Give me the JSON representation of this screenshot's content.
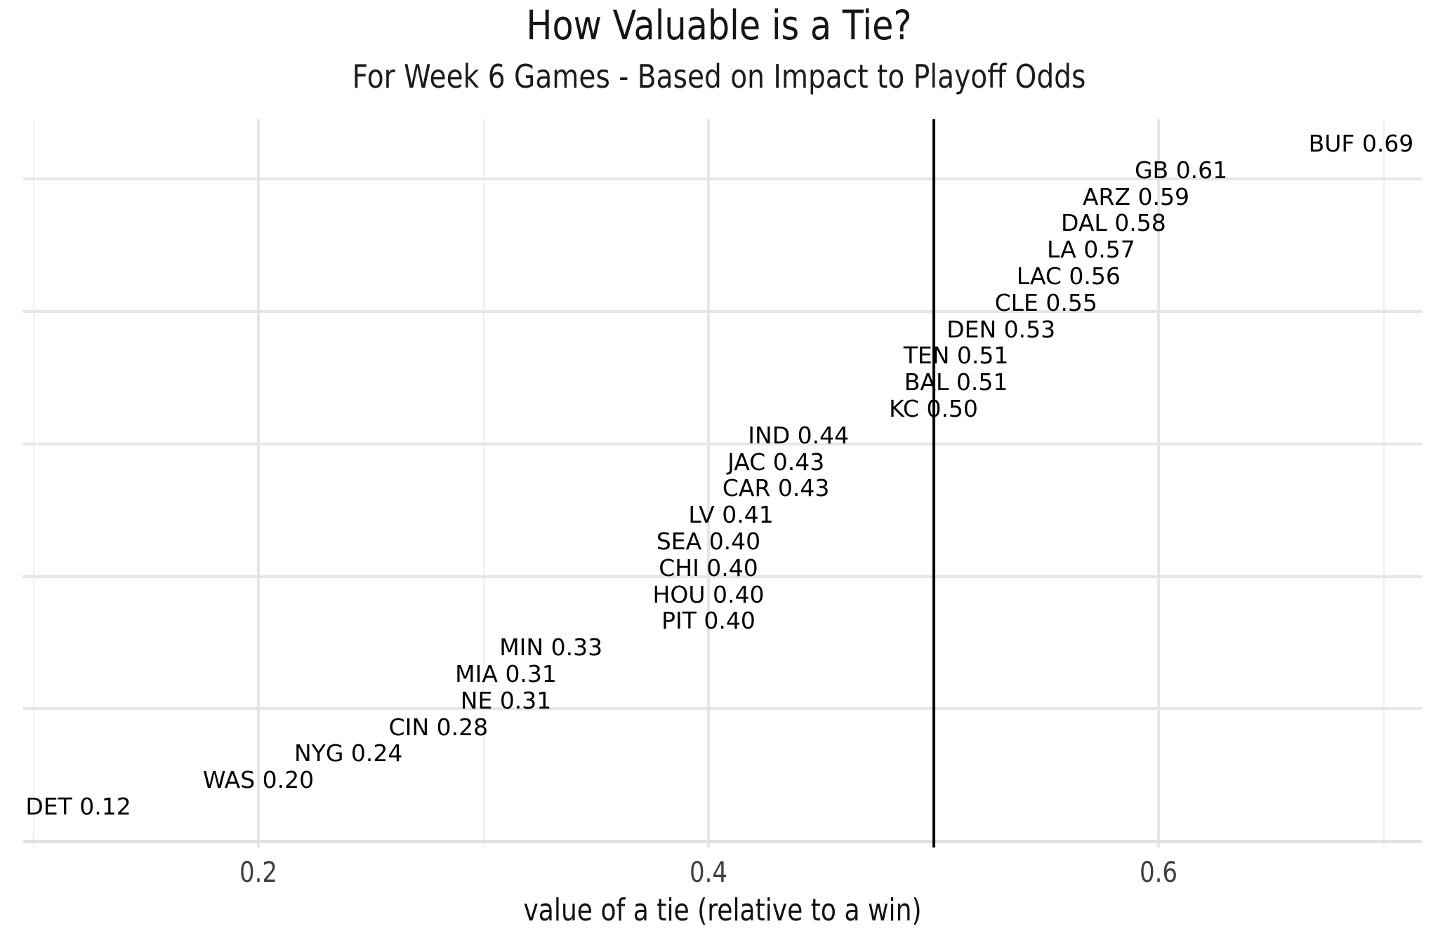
{
  "chart_data": {
    "type": "scatter",
    "title": "How Valuable is a Tie?",
    "subtitle": "For Week 6 Games - Based on Impact to Playoff Odds",
    "xlabel": "value of a tie (relative to a win)",
    "x_axis": {
      "tick_values": [
        0.2,
        0.4,
        0.6
      ],
      "tick_labels": [
        "0.2",
        "0.4",
        "0.6"
      ],
      "minor_gridline_values": [
        0.1,
        0.3,
        0.5,
        0.7
      ],
      "range": [
        0.095,
        0.717
      ]
    },
    "y_axis": {
      "label": "",
      "tick_labels": [],
      "gridlines": true,
      "note": "teams ordered by value, top = highest"
    },
    "reference_line_x": 0.5,
    "grid": true,
    "legend": false,
    "marker_style": "text-label",
    "colors": {
      "label": "#000000",
      "reference_line": "#000000",
      "grid_major": "#e6e6e6",
      "grid_minor": "#efefef",
      "tick_text": "#404040",
      "title_text": "#151515"
    },
    "points": [
      {
        "team": "BUF",
        "value": 0.69,
        "label": "BUF 0.69"
      },
      {
        "team": "GB",
        "value": 0.61,
        "label": "GB 0.61"
      },
      {
        "team": "ARZ",
        "value": 0.59,
        "label": "ARZ 0.59"
      },
      {
        "team": "DAL",
        "value": 0.58,
        "label": "DAL 0.58"
      },
      {
        "team": "LA",
        "value": 0.57,
        "label": "LA 0.57"
      },
      {
        "team": "LAC",
        "value": 0.56,
        "label": "LAC 0.56"
      },
      {
        "team": "CLE",
        "value": 0.55,
        "label": "CLE 0.55"
      },
      {
        "team": "DEN",
        "value": 0.53,
        "label": "DEN 0.53"
      },
      {
        "team": "TEN",
        "value": 0.51,
        "label": "TEN 0.51"
      },
      {
        "team": "BAL",
        "value": 0.51,
        "label": "BAL 0.51"
      },
      {
        "team": "KC",
        "value": 0.5,
        "label": "KC 0.50"
      },
      {
        "team": "IND",
        "value": 0.44,
        "label": "IND 0.44"
      },
      {
        "team": "JAC",
        "value": 0.43,
        "label": "JAC 0.43"
      },
      {
        "team": "CAR",
        "value": 0.43,
        "label": "CAR 0.43"
      },
      {
        "team": "LV",
        "value": 0.41,
        "label": "LV 0.41"
      },
      {
        "team": "SEA",
        "value": 0.4,
        "label": "SEA 0.40"
      },
      {
        "team": "CHI",
        "value": 0.4,
        "label": "CHI 0.40"
      },
      {
        "team": "HOU",
        "value": 0.4,
        "label": "HOU 0.40"
      },
      {
        "team": "PIT",
        "value": 0.4,
        "label": "PIT 0.40"
      },
      {
        "team": "MIN",
        "value": 0.33,
        "label": "MIN 0.33"
      },
      {
        "team": "MIA",
        "value": 0.31,
        "label": "MIA 0.31"
      },
      {
        "team": "NE",
        "value": 0.31,
        "label": "NE 0.31"
      },
      {
        "team": "CIN",
        "value": 0.28,
        "label": "CIN 0.28"
      },
      {
        "team": "NYG",
        "value": 0.24,
        "label": "NYG 0.24"
      },
      {
        "team": "WAS",
        "value": 0.2,
        "label": "WAS 0.20"
      },
      {
        "team": "DET",
        "value": 0.12,
        "label": "DET 0.12"
      }
    ]
  }
}
